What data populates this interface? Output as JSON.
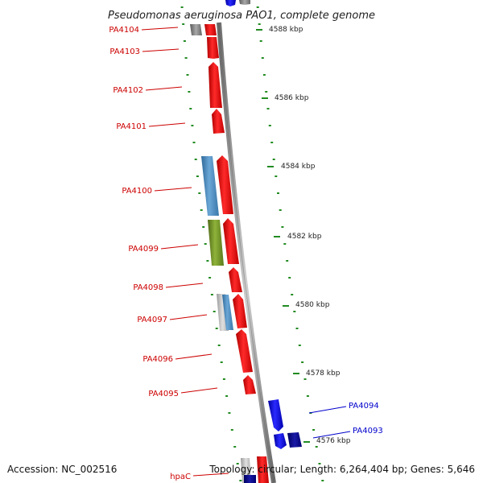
{
  "title": "Pseudomonas aeruginosa PAO1, complete genome",
  "footer": {
    "accession": "Accession: NC_002516",
    "stats": "Topology: circular; Length: 6,264,404 bp; Genes: 5,646"
  },
  "colors": {
    "reverse_gene": "#ff0000",
    "forward_gene": "#0000ff",
    "steelblue_gene": "#4682b4",
    "olive_gene": "#6b8e23",
    "gray_gene": "#888888",
    "navy_gene": "#00008b",
    "tick": "#228b22",
    "backbone": "#808080"
  },
  "kbp_ticks": [
    "4588 kbp",
    "4586 kbp",
    "4584 kbp",
    "4582 kbp",
    "4580 kbp",
    "4578 kbp",
    "4576 kbp"
  ],
  "genes": [
    {
      "label": "PA4104",
      "strand": "reverse",
      "color": "red"
    },
    {
      "label": "PA4103",
      "strand": "reverse",
      "color": "red"
    },
    {
      "label": "PA4102",
      "strand": "reverse",
      "color": "red"
    },
    {
      "label": "PA4101",
      "strand": "reverse",
      "color": "red"
    },
    {
      "label": "PA4100",
      "strand": "reverse",
      "color": "red"
    },
    {
      "label": "PA4099",
      "strand": "reverse",
      "color": "red"
    },
    {
      "label": "PA4098",
      "strand": "reverse",
      "color": "red"
    },
    {
      "label": "PA4097",
      "strand": "reverse",
      "color": "red"
    },
    {
      "label": "PA4096",
      "strand": "reverse",
      "color": "red"
    },
    {
      "label": "PA4095",
      "strand": "reverse",
      "color": "red"
    },
    {
      "label": "PA4094",
      "strand": "forward",
      "color": "blue"
    },
    {
      "label": "PA4093",
      "strand": "forward",
      "color": "blue"
    },
    {
      "label": "hpaC",
      "strand": "reverse",
      "color": "red"
    }
  ]
}
